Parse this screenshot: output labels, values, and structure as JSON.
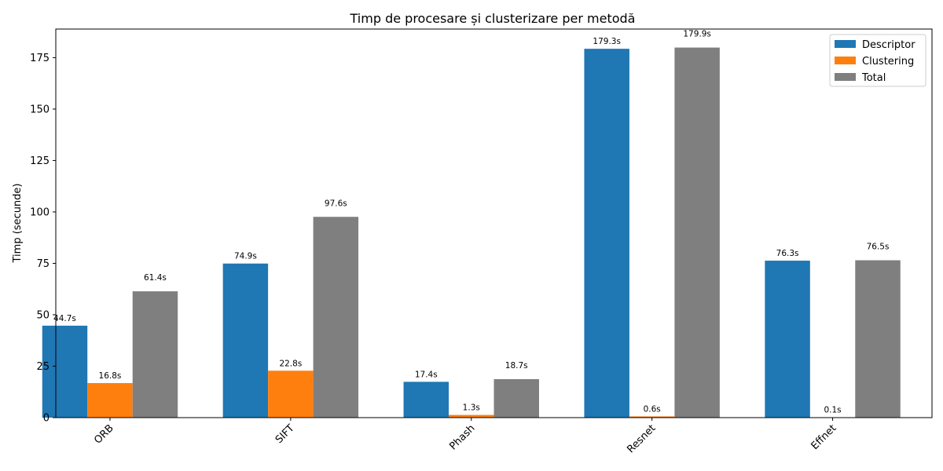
{
  "chart_data": {
    "type": "bar",
    "title": "Timp de procesare și clusterizare per metodă",
    "xlabel": "",
    "ylabel": "Timp (secunde)",
    "categories": [
      "ORB",
      "SIFT",
      "Phash",
      "Resnet",
      "Effnet"
    ],
    "series": [
      {
        "name": "Descriptor",
        "color": "#1f77b4",
        "values": [
          44.7,
          74.9,
          17.4,
          179.3,
          76.3
        ],
        "labels": [
          "44.7s",
          "74.9s",
          "17.4s",
          "179.3s",
          "76.3s"
        ]
      },
      {
        "name": "Clustering",
        "color": "#ff7f0e",
        "values": [
          16.8,
          22.8,
          1.3,
          0.6,
          0.1
        ],
        "labels": [
          "16.8s",
          "22.8s",
          "1.3s",
          "0.6s",
          "0.1s"
        ]
      },
      {
        "name": "Total",
        "color": "#7f7f7f",
        "values": [
          61.4,
          97.6,
          18.7,
          179.9,
          76.5
        ],
        "labels": [
          "61.4s",
          "97.6s",
          "18.7s",
          "179.9s",
          "76.5s"
        ]
      }
    ],
    "ylim": [
      0,
      188.9
    ],
    "yticks": [
      0,
      25,
      50,
      75,
      100,
      125,
      150,
      175
    ],
    "xtick_rotation": "45deg",
    "grid": false,
    "legend": "top-right"
  }
}
